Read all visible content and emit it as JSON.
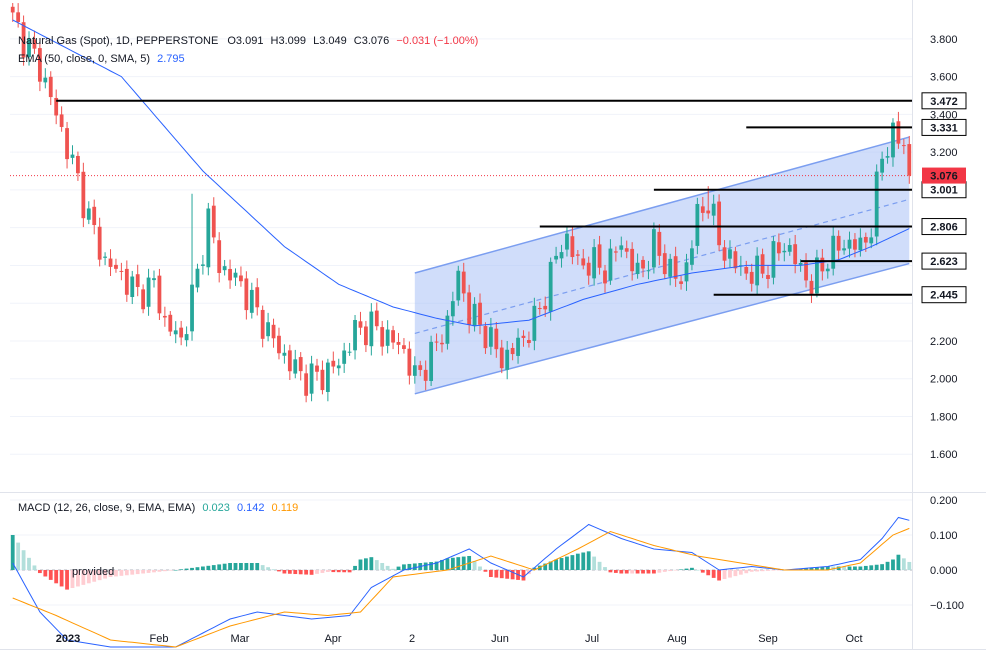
{
  "chart_data": [
    {
      "type": "candlestick",
      "title": "Natural Gas (Spot), 1D, PEPPERSTONE",
      "ohlc_label": {
        "o": "O3.091",
        "h": "H3.099",
        "l": "L3.049",
        "c": "C3.076",
        "chg": "−0.031 (−1.00%)"
      },
      "ema_label": {
        "text": "EMA (50, close, 0, SMA, 5)",
        "value": "2.795"
      },
      "ylim": [
        1.4,
        3.9
      ],
      "y_ticks": [
        "3.800",
        "3.600",
        "3.400",
        "3.200",
        "3.000",
        "2.800",
        "2.600",
        "2.400",
        "2.200",
        "2.000",
        "1.800",
        "1.600"
      ],
      "x_ticks": [
        "2023",
        "Feb",
        "Mar",
        "Apr",
        "2",
        "Jun",
        "Jul",
        "Aug",
        "Sep",
        "Oct"
      ],
      "anchors": [
        [
          0,
          3.9
        ],
        [
          5,
          3.65
        ],
        [
          8,
          3.4
        ],
        [
          12,
          3.05
        ],
        [
          14,
          2.85
        ],
        [
          17,
          2.62
        ],
        [
          20,
          2.55
        ],
        [
          23,
          2.45
        ],
        [
          26,
          2.5
        ],
        [
          28,
          2.3
        ],
        [
          31,
          2.2
        ],
        [
          34,
          2.55
        ],
        [
          36,
          2.85
        ],
        [
          38,
          2.6
        ],
        [
          40,
          2.55
        ],
        [
          42,
          2.5
        ],
        [
          45,
          2.35
        ],
        [
          48,
          2.2
        ],
        [
          51,
          2.08
        ],
        [
          54,
          2.0
        ],
        [
          57,
          2.02
        ],
        [
          60,
          2.08
        ],
        [
          63,
          2.25
        ],
        [
          66,
          2.28
        ],
        [
          69,
          2.22
        ],
        [
          72,
          2.15
        ],
        [
          74,
          2.0
        ],
        [
          77,
          2.12
        ],
        [
          80,
          2.3
        ],
        [
          82,
          2.55
        ],
        [
          84,
          2.35
        ],
        [
          87,
          2.25
        ],
        [
          90,
          2.1
        ],
        [
          93,
          2.18
        ],
        [
          96,
          2.3
        ],
        [
          98,
          2.45
        ],
        [
          100,
          2.65
        ],
        [
          102,
          2.75
        ],
        [
          104,
          2.6
        ],
        [
          106,
          2.62
        ],
        [
          109,
          2.58
        ],
        [
          112,
          2.72
        ],
        [
          115,
          2.55
        ],
        [
          118,
          2.7
        ],
        [
          120,
          2.62
        ],
        [
          123,
          2.5
        ],
        [
          126,
          2.85
        ],
        [
          128,
          2.95
        ],
        [
          130,
          2.72
        ],
        [
          133,
          2.6
        ],
        [
          136,
          2.55
        ],
        [
          139,
          2.6
        ],
        [
          142,
          2.72
        ],
        [
          145,
          2.58
        ],
        [
          147,
          2.5
        ],
        [
          150,
          2.65
        ],
        [
          153,
          2.72
        ],
        [
          156,
          2.7
        ],
        [
          158,
          2.8
        ],
        [
          160,
          3.2
        ],
        [
          162,
          3.28
        ],
        [
          164,
          3.25
        ],
        [
          165,
          3.076
        ]
      ],
      "wild_highs": [
        [
          33,
          2.98
        ],
        [
          128,
          3.02
        ]
      ],
      "last_price": "3.076",
      "ema": [
        [
          0,
          3.9
        ],
        [
          20,
          3.6
        ],
        [
          35,
          3.1
        ],
        [
          50,
          2.7
        ],
        [
          60,
          2.5
        ],
        [
          70,
          2.38
        ],
        [
          78,
          2.32
        ],
        [
          85,
          2.28
        ],
        [
          95,
          2.31
        ],
        [
          105,
          2.42
        ],
        [
          115,
          2.5
        ],
        [
          125,
          2.56
        ],
        [
          135,
          2.6
        ],
        [
          145,
          2.6
        ],
        [
          152,
          2.63
        ],
        [
          158,
          2.7
        ],
        [
          165,
          2.795
        ]
      ],
      "channel": {
        "lower": [
          [
            74,
            1.92
          ],
          [
            165,
            2.61
          ]
        ],
        "upper": [
          [
            74,
            2.56
          ],
          [
            165,
            3.28
          ]
        ],
        "mid": [
          [
            74,
            2.24
          ],
          [
            165,
            2.95
          ]
        ]
      },
      "levels": [
        {
          "price": 3.472,
          "label": "3.472",
          "from": 8
        },
        {
          "price": 3.331,
          "label": "3.331",
          "from": 135
        },
        {
          "price": 3.001,
          "label": "3.001",
          "from": 118
        },
        {
          "price": 2.806,
          "label": "2.806",
          "from": 97
        },
        {
          "price": 2.623,
          "label": "2.623",
          "from": 145
        },
        {
          "price": 2.445,
          "label": "2.445",
          "from": 129
        }
      ],
      "colors": {
        "up": "#26a69a",
        "down": "#ef5350",
        "ema": "#2962ff",
        "level": "#000000",
        "channel_fill": "#a9c1f5",
        "channel_line": "#7b9ef0",
        "last_price": "#f23645"
      }
    },
    {
      "type": "macd",
      "label": {
        "text": "MACD (12, 26, close, 9, EMA, EMA)",
        "hist": "0.023",
        "macd": "0.142",
        "signal": "0.119"
      },
      "ylim": [
        -0.2,
        0.22
      ],
      "y_ticks": [
        "0.200",
        "0.100",
        "0.000",
        "−0.100"
      ],
      "watermark": "provided",
      "macd_anchors": [
        [
          0,
          0.02
        ],
        [
          5,
          -0.12
        ],
        [
          10,
          -0.2
        ],
        [
          18,
          -0.22
        ],
        [
          30,
          -0.22
        ],
        [
          40,
          -0.14
        ],
        [
          45,
          -0.12
        ],
        [
          55,
          -0.14
        ],
        [
          62,
          -0.13
        ],
        [
          66,
          -0.05
        ],
        [
          72,
          0.0
        ],
        [
          78,
          0.02
        ],
        [
          84,
          0.06
        ],
        [
          88,
          0.02
        ],
        [
          94,
          -0.02
        ],
        [
          100,
          0.06
        ],
        [
          106,
          0.13
        ],
        [
          112,
          0.09
        ],
        [
          118,
          0.06
        ],
        [
          125,
          0.05
        ],
        [
          130,
          0.0
        ],
        [
          136,
          0.01
        ],
        [
          142,
          0.0
        ],
        [
          150,
          0.01
        ],
        [
          156,
          0.03
        ],
        [
          160,
          0.09
        ],
        [
          163,
          0.15
        ],
        [
          165,
          0.142
        ]
      ],
      "signal_anchors": [
        [
          0,
          -0.08
        ],
        [
          8,
          -0.13
        ],
        [
          18,
          -0.2
        ],
        [
          30,
          -0.22
        ],
        [
          40,
          -0.16
        ],
        [
          50,
          -0.12
        ],
        [
          58,
          -0.13
        ],
        [
          64,
          -0.12
        ],
        [
          70,
          -0.02
        ],
        [
          80,
          0.0
        ],
        [
          88,
          0.04
        ],
        [
          96,
          0.0
        ],
        [
          104,
          0.06
        ],
        [
          110,
          0.11
        ],
        [
          118,
          0.07
        ],
        [
          126,
          0.04
        ],
        [
          134,
          0.02
        ],
        [
          142,
          0.0
        ],
        [
          150,
          0.0
        ],
        [
          156,
          0.02
        ],
        [
          162,
          0.1
        ],
        [
          165,
          0.119
        ]
      ],
      "colors": {
        "macd": "#2962ff",
        "signal": "#ff9800",
        "hist_up_strong": "#26a69a",
        "hist_up_weak": "#b2dfdb",
        "hist_down_strong": "#ff5252",
        "hist_down_weak": "#ffcdd2"
      }
    }
  ]
}
